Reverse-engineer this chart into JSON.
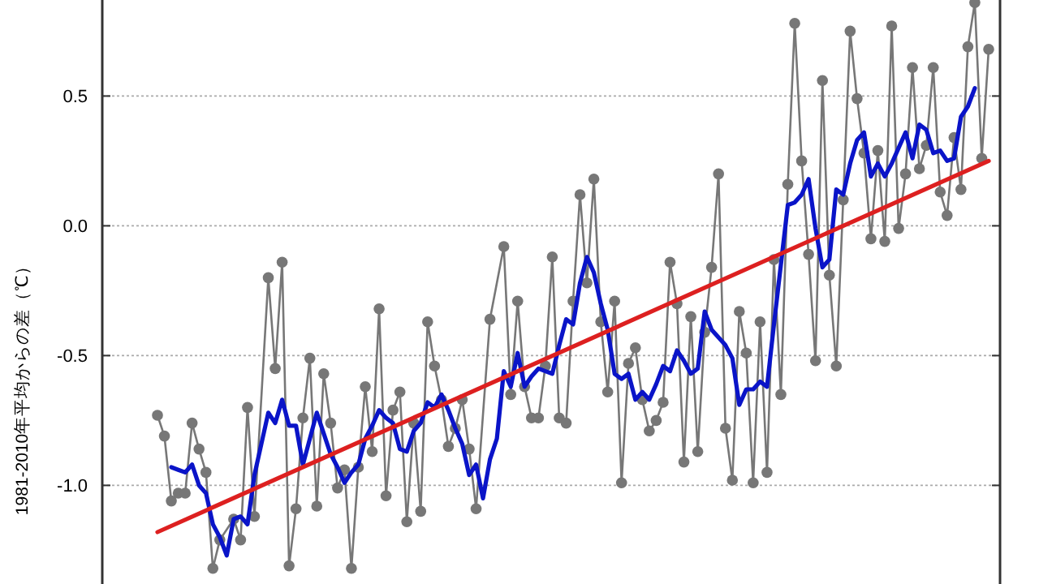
{
  "chart_data": {
    "type": "line",
    "ylabel": "1981-2010年平均からの差（℃）",
    "categories": [
      null,
      null,
      null,
      null,
      null,
      null,
      null,
      null,
      null,
      null,
      null,
      null,
      null,
      null,
      null,
      null,
      null,
      null,
      null,
      null,
      null,
      null,
      null,
      null,
      null,
      null,
      null,
      null,
      null,
      null,
      null,
      null,
      null,
      null,
      null,
      null,
      null,
      null,
      null,
      null,
      null,
      null,
      null,
      null,
      null,
      null,
      null,
      null,
      null,
      null,
      null,
      null,
      null,
      null,
      null,
      null,
      null,
      null,
      null,
      null,
      null,
      null,
      null,
      null,
      null,
      null,
      null,
      null,
      null,
      null,
      null,
      null,
      null,
      null,
      null,
      null,
      null,
      null,
      null,
      null,
      null,
      null,
      null,
      null,
      null,
      null,
      null,
      null,
      null,
      null,
      null,
      null,
      null,
      null,
      null,
      null,
      null,
      null,
      null,
      null,
      null,
      null,
      null,
      null,
      null,
      null,
      null,
      null,
      null,
      null,
      null,
      null,
      null,
      null,
      null,
      null,
      null,
      null,
      null,
      null,
      null
    ],
    "ylim": [
      -1.38,
      0.87
    ],
    "yticks": [
      {
        "value": -1,
        "label": "-1.0"
      },
      {
        "value": -0.5,
        "label": "-0.5"
      },
      {
        "value": 0,
        "label": "0.0"
      },
      {
        "value": 0.5,
        "label": "0.5"
      }
    ],
    "grid": "y",
    "tick_labels": "y",
    "series": [
      {
        "color": "#777777",
        "marker": "circle",
        "values": [
          -0.73,
          -0.81,
          -1.06,
          -1.03,
          -1.03,
          -0.76,
          -0.86,
          -0.95,
          -1.32,
          -1.21,
          null,
          -1.13,
          -1.21,
          -0.7,
          -1.12,
          null,
          -0.2,
          -0.55,
          -0.14,
          -1.31,
          -1.09,
          -0.74,
          -0.51,
          -1.08,
          -0.57,
          -0.76,
          -1.01,
          -0.94,
          -1.32,
          -0.93,
          -0.62,
          -0.87,
          -0.32,
          -1.04,
          -0.71,
          -0.64,
          -1.14,
          -0.76,
          -1.1,
          -0.37,
          -0.54,
          -0.67,
          -0.85,
          -0.78,
          -0.67,
          -0.86,
          -1.09,
          null,
          -0.36,
          null,
          -0.08,
          -0.65,
          -0.29,
          -0.62,
          -0.74,
          -0.74,
          -0.54,
          -0.12,
          -0.74,
          -0.76,
          -0.29,
          0.12,
          -0.22,
          0.18,
          -0.37,
          -0.64,
          -0.29,
          -0.99,
          -0.53,
          -0.47,
          -0.67,
          -0.79,
          -0.75,
          -0.68,
          -0.14,
          -0.3,
          -0.91,
          -0.35,
          -0.87,
          -0.41,
          -0.16,
          0.2,
          -0.78,
          -0.98,
          -0.33,
          -0.49,
          -0.99,
          -0.37,
          -0.95,
          -0.13,
          -0.65,
          0.16,
          0.78,
          0.25,
          -0.11,
          -0.52,
          0.56,
          -0.19,
          -0.54,
          0.1,
          0.75,
          0.49,
          0.28,
          -0.05,
          0.29,
          -0.06,
          0.77,
          -0.01,
          0.2,
          0.61,
          0.22,
          0.31,
          0.61,
          0.13,
          0.04,
          0.34,
          0.14,
          0.69,
          0.86,
          0.26,
          0.68
        ]
      },
      {
        "color": "#0a14c8",
        "values": [
          null,
          null,
          -0.93,
          -0.94,
          -0.95,
          -0.92,
          -1.0,
          -1.03,
          -1.15,
          -1.2,
          -1.27,
          -1.13,
          -1.12,
          -1.15,
          -0.96,
          -0.84,
          -0.72,
          -0.76,
          -0.67,
          -0.77,
          -0.77,
          -0.92,
          -0.82,
          -0.72,
          -0.8,
          -0.88,
          -0.93,
          -0.99,
          -0.95,
          -0.92,
          -0.82,
          -0.77,
          -0.71,
          -0.74,
          -0.76,
          -0.86,
          -0.87,
          -0.79,
          -0.76,
          -0.68,
          -0.7,
          -0.65,
          -0.71,
          -0.78,
          -0.84,
          -0.96,
          -0.92,
          -1.05,
          -0.9,
          -0.82,
          -0.56,
          -0.62,
          -0.49,
          -0.62,
          -0.58,
          -0.55,
          -0.56,
          -0.57,
          -0.46,
          -0.36,
          -0.38,
          -0.22,
          -0.12,
          -0.18,
          -0.3,
          -0.4,
          -0.57,
          -0.59,
          -0.57,
          -0.67,
          -0.64,
          -0.67,
          -0.61,
          -0.54,
          -0.56,
          -0.48,
          -0.52,
          -0.57,
          -0.55,
          -0.33,
          -0.4,
          -0.43,
          -0.46,
          -0.51,
          -0.69,
          -0.63,
          -0.63,
          -0.6,
          -0.62,
          -0.38,
          -0.15,
          0.08,
          0.09,
          0.12,
          0.18,
          -0.01,
          -0.16,
          -0.13,
          0.14,
          0.12,
          0.24,
          0.33,
          0.36,
          0.19,
          0.24,
          0.19,
          0.24,
          0.3,
          0.36,
          0.26,
          0.39,
          0.37,
          0.28,
          0.29,
          0.25,
          0.26,
          0.42,
          0.46,
          0.53,
          null,
          null
        ]
      },
      {
        "color": "#dd2020",
        "values": [
          -1.18,
          null,
          null,
          null,
          null,
          null,
          null,
          null,
          null,
          null,
          null,
          null,
          null,
          null,
          null,
          null,
          null,
          null,
          null,
          null,
          null,
          null,
          null,
          null,
          null,
          null,
          null,
          null,
          null,
          null,
          null,
          null,
          null,
          null,
          null,
          null,
          null,
          null,
          null,
          null,
          null,
          null,
          null,
          null,
          null,
          null,
          null,
          null,
          null,
          null,
          null,
          null,
          null,
          null,
          null,
          null,
          null,
          null,
          null,
          null,
          null,
          null,
          null,
          null,
          null,
          null,
          null,
          null,
          null,
          null,
          null,
          null,
          null,
          null,
          null,
          null,
          null,
          null,
          null,
          null,
          null,
          null,
          null,
          null,
          null,
          null,
          null,
          null,
          null,
          null,
          null,
          null,
          null,
          null,
          null,
          null,
          null,
          null,
          null,
          null,
          null,
          null,
          null,
          null,
          null,
          null,
          null,
          null,
          null,
          null,
          null,
          null,
          null,
          null,
          null,
          null,
          null,
          null,
          null,
          null,
          0.25
        ]
      }
    ]
  }
}
